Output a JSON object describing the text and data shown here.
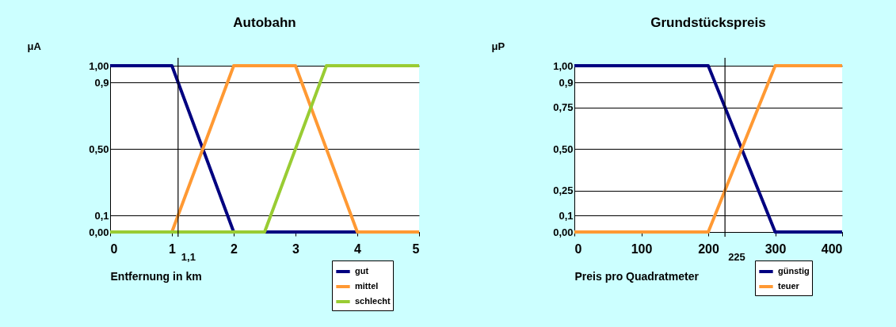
{
  "chart_data": [
    {
      "type": "line",
      "title": "Autobahn",
      "xlabel": "Entfernung in km",
      "ylabel": "μA",
      "xlim": [
        0,
        5
      ],
      "xticks": [
        0,
        1,
        2,
        3,
        4,
        5
      ],
      "ylim": [
        0,
        1
      ],
      "yticks": [
        {
          "value": 0,
          "label": "0,00"
        },
        {
          "value": 0.1,
          "label": "0,1"
        },
        {
          "value": 0.5,
          "label": "0,50"
        },
        {
          "value": 0.9,
          "label": "0,9"
        },
        {
          "value": 1,
          "label": "1,00"
        }
      ],
      "grid": "y",
      "legend": "bottom right",
      "series": [
        {
          "name": "gut",
          "color": "#000080",
          "x": [
            0,
            1,
            2,
            5
          ],
          "values": [
            1,
            1,
            0,
            0
          ]
        },
        {
          "name": "mittel",
          "color": "#ff9933",
          "x": [
            0,
            1,
            2,
            3,
            4,
            5
          ],
          "values": [
            0,
            0,
            1,
            1,
            0,
            0
          ]
        },
        {
          "name": "schlecht",
          "color": "#99cc33",
          "x": [
            0,
            2.5,
            3.5,
            5
          ],
          "values": [
            0,
            0,
            1,
            1
          ]
        }
      ],
      "ref_lines": [
        {
          "axis": "x",
          "value": 1.1,
          "label": "1,1"
        }
      ]
    },
    {
      "type": "line",
      "title": "Grundstückspreis",
      "xlabel": "Preis pro Quadratmeter",
      "ylabel": "μP",
      "xlim": [
        0,
        400
      ],
      "xticks": [
        0,
        100,
        200,
        300,
        400
      ],
      "ylim": [
        0,
        1
      ],
      "yticks": [
        {
          "value": 0,
          "label": "0,00"
        },
        {
          "value": 0.1,
          "label": "0,1"
        },
        {
          "value": 0.25,
          "label": "0,25"
        },
        {
          "value": 0.5,
          "label": "0,50"
        },
        {
          "value": 0.75,
          "label": "0,75"
        },
        {
          "value": 0.9,
          "label": "0,9"
        },
        {
          "value": 1,
          "label": "1,00"
        }
      ],
      "grid": "y",
      "legend": "bottom right",
      "series": [
        {
          "name": "günstig",
          "color": "#000080",
          "x": [
            0,
            200,
            300,
            400
          ],
          "values": [
            1,
            1,
            0,
            0
          ]
        },
        {
          "name": "teuer",
          "color": "#ff9933",
          "x": [
            0,
            200,
            300,
            400
          ],
          "values": [
            0,
            0,
            1,
            1
          ]
        }
      ],
      "ref_lines": [
        {
          "axis": "x",
          "value": 225,
          "label": "225"
        }
      ]
    }
  ]
}
